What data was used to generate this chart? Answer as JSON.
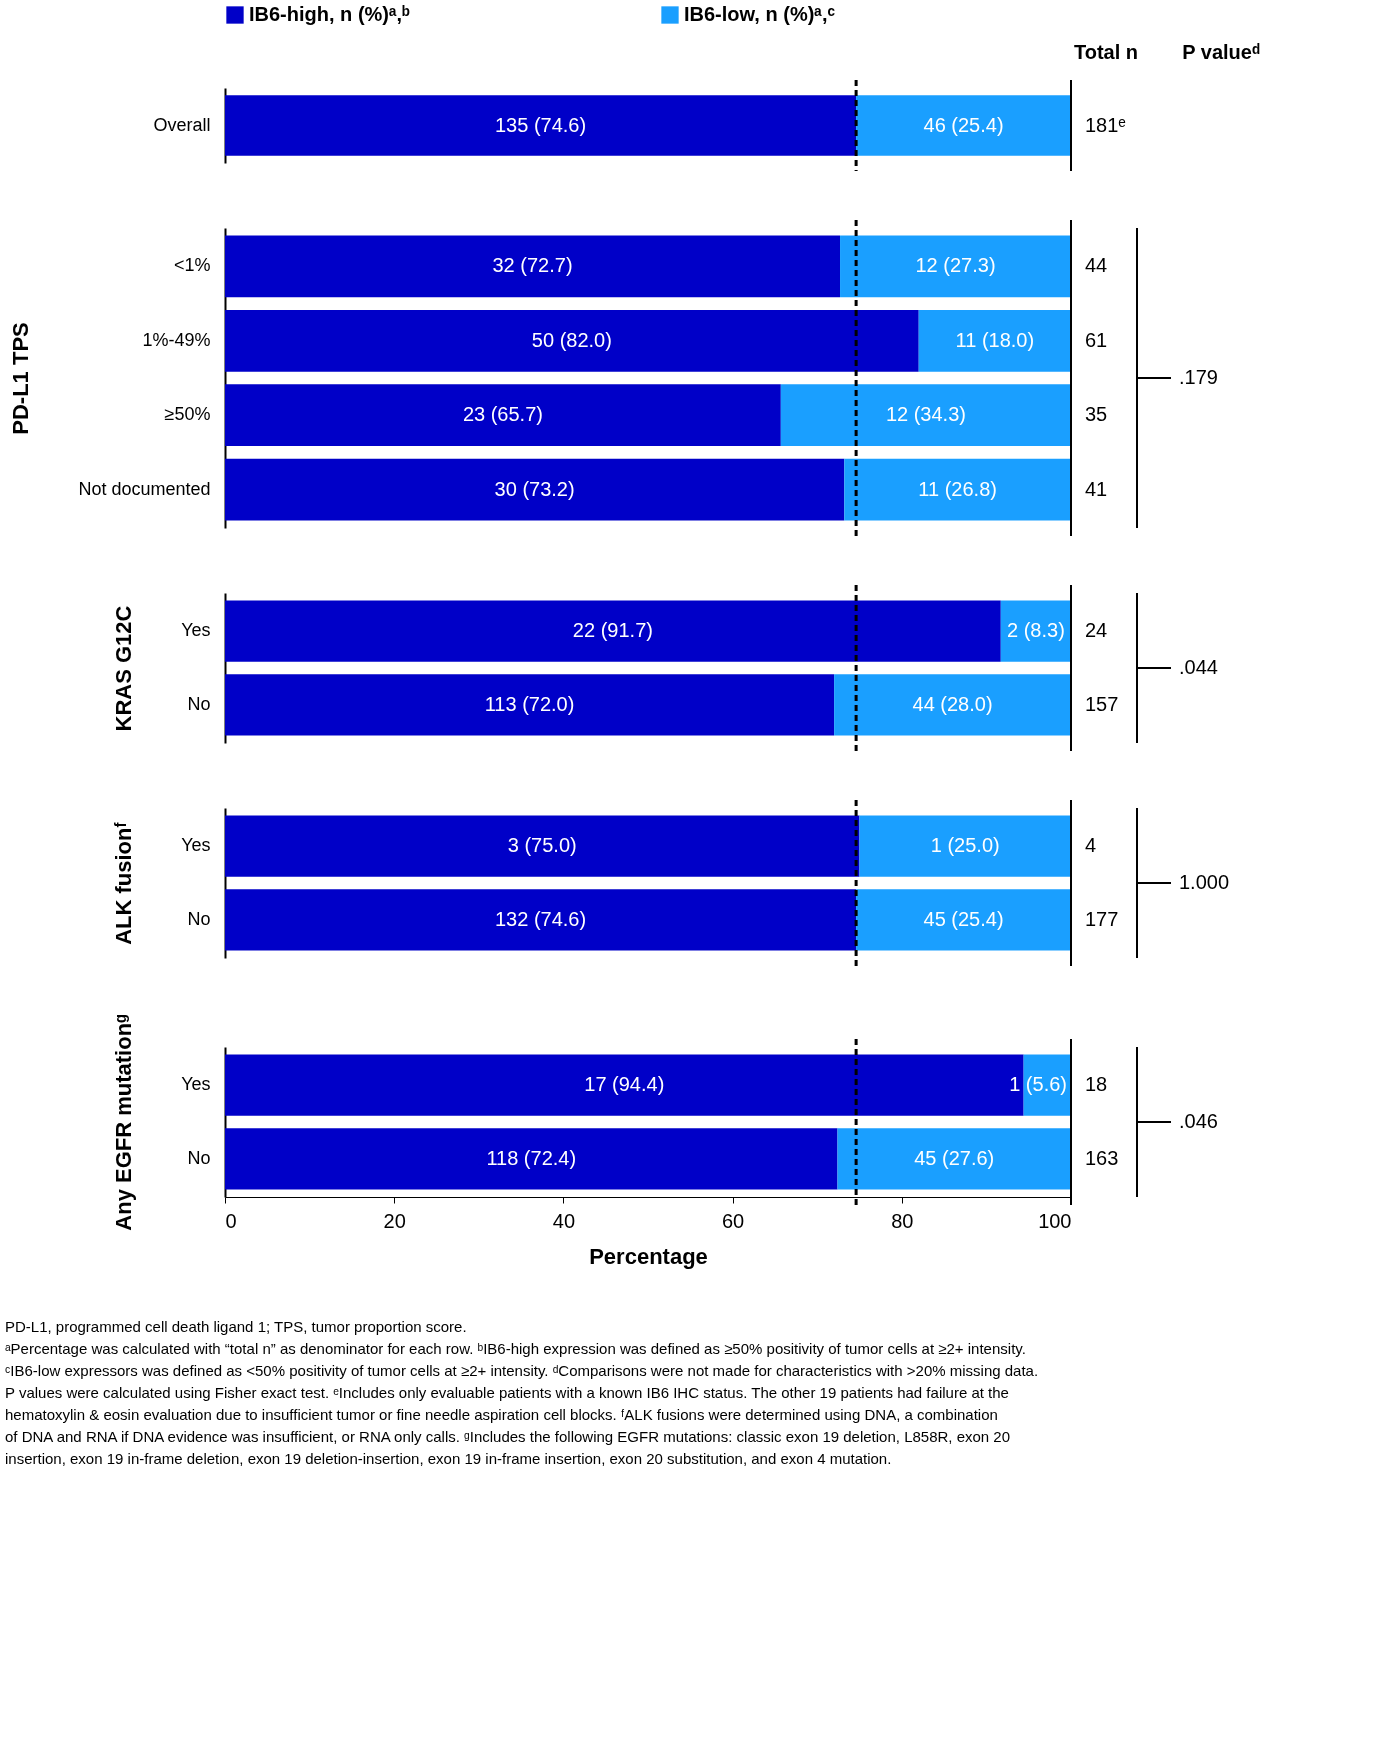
{
  "chart_data": [
    {
      "type": "bar",
      "orientation": "horizontal",
      "stacked": true,
      "legend": "top",
      "tick_labels": "y",
      "grid": false,
      "xlim": [
        0,
        100
      ],
      "xticks": [
        0,
        20,
        40,
        60,
        80,
        100
      ],
      "categories": [
        "Overall"
      ],
      "series": [
        {
          "name": "IB6-high, n (%)ᵃ,ᵇ",
          "color": "#0000c8",
          "values": [
            74.6
          ],
          "value_labels": [
            "135 (74.6)"
          ]
        },
        {
          "name": "IB6-low, n (%)ᵃ,ᶜ",
          "color": "#1a9fff",
          "values": [
            25.4
          ],
          "value_labels": [
            "46 (25.4)"
          ]
        }
      ],
      "ref_lines": [
        {
          "axis": "x",
          "value": 74.6,
          "line_style": "dashed",
          "color": "#000000"
        }
      ],
      "annotations": [
        "181ᵉ",
        "Total n",
        "P valueᵈ"
      ]
    },
    {
      "type": "bar",
      "orientation": "horizontal",
      "stacked": true,
      "tick_labels": "y",
      "grid": false,
      "xlim": [
        0,
        100
      ],
      "xticks": [
        0,
        20,
        40,
        60,
        80,
        100
      ],
      "ylabel": "PD-L1 TPS",
      "categories": [
        "<1%",
        "1%-49%",
        "≥50%",
        "Not documented"
      ],
      "series": [
        {
          "color": "#0000c8",
          "values": [
            72.7,
            82.0,
            65.7,
            73.2
          ],
          "value_labels": [
            "32 (72.7)",
            "50 (82.0)",
            "23 (65.7)",
            "30 (73.2)"
          ]
        },
        {
          "color": "#1a9fff",
          "values": [
            27.3,
            18.0,
            34.3,
            26.8
          ],
          "value_labels": [
            "12 (27.3)",
            "11 (18.0)",
            "12 (34.3)",
            "11 (26.8)"
          ]
        }
      ],
      "ref_lines": [
        {
          "axis": "x",
          "value": 74.6,
          "line_style": "dashed",
          "color": "#000000"
        }
      ],
      "annotations": [
        "44",
        "61",
        "35",
        "41",
        ".179"
      ]
    },
    {
      "type": "bar",
      "orientation": "horizontal",
      "stacked": true,
      "tick_labels": "y",
      "grid": false,
      "xlim": [
        0,
        100
      ],
      "xticks": [
        0,
        20,
        40,
        60,
        80,
        100
      ],
      "ylabel": "KRAS G12C",
      "categories": [
        "Yes",
        "No"
      ],
      "series": [
        {
          "color": "#0000c8",
          "values": [
            91.7,
            72.0
          ],
          "value_labels": [
            "22 (91.7)",
            "113 (72.0)"
          ]
        },
        {
          "color": "#1a9fff",
          "values": [
            8.3,
            28.0
          ],
          "value_labels": [
            "2 (8.3)",
            "44 (28.0)"
          ]
        }
      ],
      "ref_lines": [
        {
          "axis": "x",
          "value": 74.6,
          "line_style": "dashed",
          "color": "#000000"
        }
      ],
      "annotations": [
        "24",
        "157",
        ".044"
      ]
    },
    {
      "type": "bar",
      "orientation": "horizontal",
      "stacked": true,
      "tick_labels": "y",
      "grid": false,
      "xlim": [
        0,
        100
      ],
      "xticks": [
        0,
        20,
        40,
        60,
        80,
        100
      ],
      "ylabel": "ALK fusionᶠ",
      "categories": [
        "Yes",
        "No"
      ],
      "series": [
        {
          "color": "#0000c8",
          "values": [
            75.0,
            74.6
          ],
          "value_labels": [
            "3 (75.0)",
            "132 (74.6)"
          ]
        },
        {
          "color": "#1a9fff",
          "values": [
            25.0,
            25.4
          ],
          "value_labels": [
            "1 (25.0)",
            "45 (25.4)"
          ]
        }
      ],
      "ref_lines": [
        {
          "axis": "x",
          "value": 74.6,
          "line_style": "dashed",
          "color": "#000000"
        }
      ],
      "annotations": [
        "4",
        "177",
        "1.000"
      ]
    },
    {
      "type": "bar",
      "orientation": "horizontal",
      "stacked": true,
      "grid": false,
      "xlim": [
        0,
        100
      ],
      "xticks": [
        0,
        20,
        40,
        60,
        80,
        100
      ],
      "ylabel": "Any EGFR mutationᵍ",
      "xlabel": "Percentage",
      "categories": [
        "Yes",
        "No"
      ],
      "series": [
        {
          "color": "#0000c8",
          "values": [
            94.4,
            72.4
          ],
          "value_labels": [
            "17  (94.4)",
            "118 (72.4)"
          ]
        },
        {
          "color": "#1a9fff",
          "values": [
            5.6,
            27.6
          ],
          "value_labels": [
            "1 (5.6)",
            "45 (27.6)"
          ]
        }
      ],
      "ref_lines": [
        {
          "axis": "x",
          "value": 74.6,
          "line_style": "dashed",
          "color": "#000000"
        }
      ],
      "annotations": [
        "18",
        "163",
        ".046",
        "PD-L1, programmed cell death ligand 1; TPS, tumor proportion score.",
        "ᵃPercentage was calculated with “total n” as denominator for each row.  ᵇIB6-high expression was defined as ≥50% positivity of tumor cells at ≥2+ intensity.",
        "ᶜIB6-low expressors was defined as <50% positivity of tumor cells at ≥2+ intensity. ᵈComparisons were not made for characteristics with >20% missing data.",
        "P values were calculated using Fisher exact test. ᵉIncludes only evaluable patients with a known IB6 IHC status. The other 19 patients had failure at the",
        "hematoxylin & eosin evaluation due to insufficient tumor or fine needle aspiration cell blocks. ᶠALK fusions were determined using DNA, a combination",
        "of DNA and RNA if DNA evidence was insufficient, or RNA only calls. ᵍIncludes the following EGFR mutations: classic exon 19 deletion, L858R, exon 20",
        "insertion, exon 19 in-frame deletion, exon 19 deletion-insertion, exon 19 in-frame insertion, exon 20 substitution, and exon 4 mutation."
      ]
    }
  ]
}
